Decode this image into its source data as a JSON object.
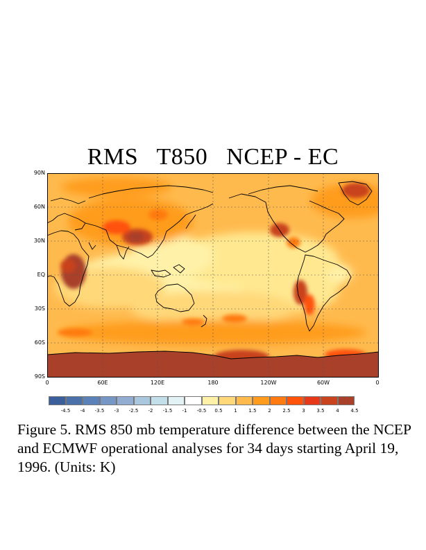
{
  "title": "RMS   T850   NCEP - EC",
  "lat_labels": [
    "90N",
    "60N",
    "30N",
    "EQ",
    "30S",
    "60S",
    "90S"
  ],
  "lon_labels": [
    "0",
    "60E",
    "120E",
    "180",
    "120W",
    "60W",
    "0"
  ],
  "colorbar": {
    "colors": [
      "#3b5f9a",
      "#4a71aa",
      "#5b82b8",
      "#7696c6",
      "#92acd2",
      "#a9c7dd",
      "#c3e0ea",
      "#e2f2f5",
      "#ffffff",
      "#fff2a8",
      "#ffd879",
      "#ffba4e",
      "#ff9c1e",
      "#ff7a10",
      "#ff520a",
      "#e8381a",
      "#c8431e",
      "#a8402a"
    ],
    "labels": [
      "-4.5",
      "-4",
      "-3.5",
      "-3",
      "-2.5",
      "-2",
      "-1.5",
      "-1",
      "-0.5",
      "0.5",
      "1",
      "1.5",
      "2",
      "2.5",
      "3",
      "3.5",
      "4",
      "4.5"
    ]
  },
  "caption": "Figure 5.  RMS 850 mb temperature difference between the NCEP and ECMWF operational analyses for 34 days starting April 19, 1996. (Units: K)"
}
